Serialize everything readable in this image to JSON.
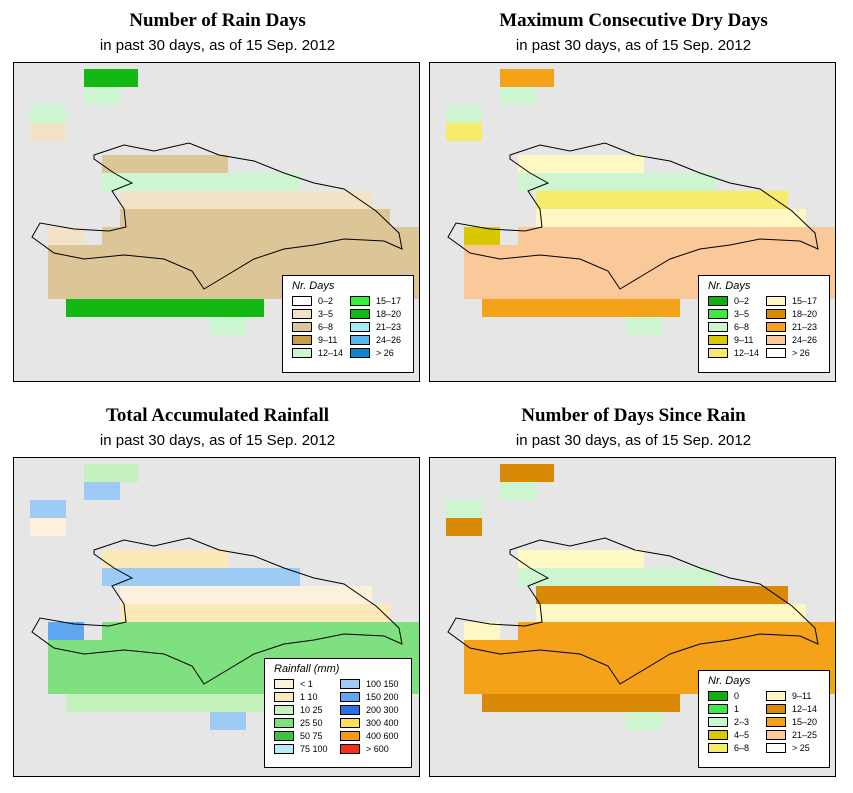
{
  "panels": [
    {
      "title": "Number of Rain Days",
      "subtitle": "in past 30 days, as of  15 Sep. 2012",
      "legend": {
        "title": "Nr. Days",
        "items": [
          {
            "label": "0–2",
            "color": "#ffffff"
          },
          {
            "label": "3–5",
            "color": "#f2e3c8"
          },
          {
            "label": "6–8",
            "color": "#dcc596"
          },
          {
            "label": "9–11",
            "color": "#c9a04a"
          },
          {
            "label": "12–14",
            "color": "#ccf7d0"
          },
          {
            "label": "15–17",
            "color": "#35f03c"
          },
          {
            "label": "18–20",
            "color": "#14b814"
          },
          {
            "label": "21–23",
            "color": "#a6ecf8"
          },
          {
            "label": "24–26",
            "color": "#55b6ee"
          },
          {
            "label": "> 26",
            "color": "#0a86cc"
          }
        ]
      }
    },
    {
      "title": "Maximum Consecutive Dry Days",
      "subtitle": "in past 30 days, as of  15 Sep. 2012",
      "legend": {
        "title": "Nr. Days",
        "items": [
          {
            "label": "0–2",
            "color": "#10b010"
          },
          {
            "label": "3–5",
            "color": "#3ee846"
          },
          {
            "label": "6–8",
            "color": "#ccf5d0"
          },
          {
            "label": "9–11",
            "color": "#d9c800"
          },
          {
            "label": "12–14",
            "color": "#f7ec6a"
          },
          {
            "label": "15–17",
            "color": "#fff8c4"
          },
          {
            "label": "18–20",
            "color": "#d88a06"
          },
          {
            "label": "21–23",
            "color": "#f3a21a"
          },
          {
            "label": "24–26",
            "color": "#fbc89a"
          },
          {
            "label": "> 26",
            "color": "#ffffff"
          }
        ]
      }
    },
    {
      "title": "Total Accumulated Rainfall",
      "subtitle": "in past 30 days, as of  15 Sep. 2012",
      "legend": {
        "title": "Rainfall (mm)",
        "items": [
          {
            "label": "< 1",
            "color": "#fdf1dc"
          },
          {
            "label": "1    10",
            "color": "#fbe9b7"
          },
          {
            "label": "10    25",
            "color": "#c3f2bd"
          },
          {
            "label": "25    50",
            "color": "#7fe07f"
          },
          {
            "label": "50    75",
            "color": "#3cc43c"
          },
          {
            "label": "75   100",
            "color": "#b7ecf6"
          },
          {
            "label": "100   150",
            "color": "#9ecbf5"
          },
          {
            "label": "150   200",
            "color": "#5ea7f0"
          },
          {
            "label": "200   300",
            "color": "#2c6fe6"
          },
          {
            "label": "300   400",
            "color": "#fce05a"
          },
          {
            "label": "400   600",
            "color": "#f29a10"
          },
          {
            "label": "> 600",
            "color": "#f53018"
          }
        ]
      }
    },
    {
      "title": "Number of Days Since Rain",
      "subtitle": "in past 30 days, as of  15 Sep. 2012",
      "legend": {
        "title": "Nr. Days",
        "items": [
          {
            "label": "0",
            "color": "#10b010"
          },
          {
            "label": "1",
            "color": "#3ee846"
          },
          {
            "label": "2–3",
            "color": "#ccf5d0"
          },
          {
            "label": "4–5",
            "color": "#d9c800"
          },
          {
            "label": "6–8",
            "color": "#f7ec6a"
          },
          {
            "label": "9–11",
            "color": "#fff8c4"
          },
          {
            "label": "12–14",
            "color": "#d88a06"
          },
          {
            "label": "15–20",
            "color": "#f3a21a"
          },
          {
            "label": "21–25",
            "color": "#fbc89a"
          },
          {
            "label": "> 25",
            "color": "#ffffff"
          }
        ]
      }
    }
  ]
}
